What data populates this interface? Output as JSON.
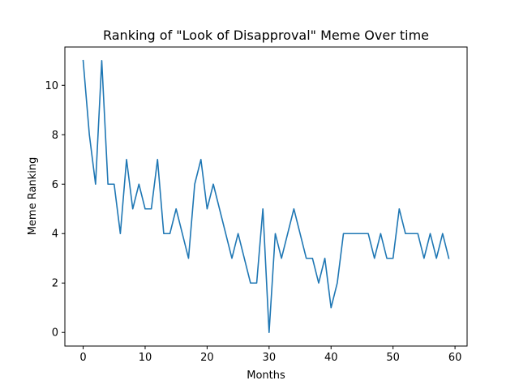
{
  "chart_data": {
    "type": "line",
    "title": "Ranking of \"Look of Disapproval\" Meme Over time",
    "xlabel": "Months",
    "ylabel": "Meme Ranking",
    "xlim": [
      -2.95,
      61.95
    ],
    "ylim": [
      -0.55,
      11.55
    ],
    "xticks": [
      0,
      10,
      20,
      30,
      40,
      50,
      60
    ],
    "yticks": [
      0,
      2,
      4,
      6,
      8,
      10
    ],
    "grid": false,
    "legend": "none",
    "line_color": "#1f77b4",
    "series": [
      {
        "x": [
          0,
          1,
          2,
          3,
          4,
          5,
          6,
          7,
          8,
          9,
          10,
          11,
          12,
          13,
          14,
          15,
          16,
          17,
          18,
          19,
          20,
          21,
          22,
          23,
          24,
          25,
          26,
          27,
          28,
          29,
          30,
          31,
          32,
          33,
          34,
          35,
          36,
          37,
          38,
          39,
          40,
          41,
          42,
          43,
          44,
          45,
          46,
          47,
          48,
          49,
          50,
          51,
          52,
          53,
          54,
          55,
          56,
          57,
          58,
          59
        ],
        "values": [
          11,
          8,
          6,
          11,
          6,
          6,
          4,
          7,
          5,
          6,
          5,
          5,
          7,
          4,
          4,
          5,
          4,
          3,
          6,
          7,
          5,
          6,
          5,
          4,
          3,
          4,
          3,
          2,
          2,
          5,
          0,
          4,
          3,
          4,
          5,
          4,
          3,
          3,
          2,
          3,
          1,
          2,
          4,
          4,
          4,
          4,
          4,
          3,
          4,
          3,
          3,
          5,
          4,
          4,
          4,
          3,
          4,
          3,
          4,
          3
        ]
      }
    ]
  }
}
